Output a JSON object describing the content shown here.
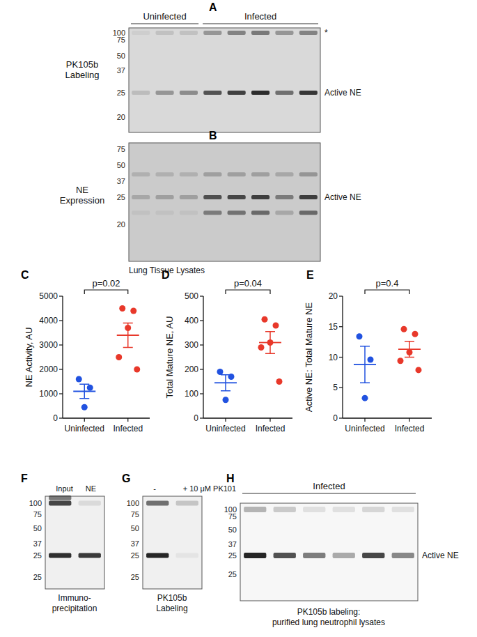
{
  "chart_data": [
    {
      "panel": "C",
      "type": "dot",
      "categories": [
        "Uninfected",
        "Infected"
      ],
      "values": [
        [
          1600,
          1250,
          450
        ],
        [
          4500,
          4400,
          3700,
          2500,
          2000
        ]
      ],
      "means": [
        1100,
        3400
      ],
      "errors": [
        290,
        500
      ],
      "colors": [
        "#2152e0",
        "#e8382a"
      ],
      "ylabel": "NE Activity, AU",
      "ylim": [
        0,
        5000
      ],
      "yticks": [
        0,
        1000,
        2000,
        3000,
        4000,
        5000
      ],
      "annotation": "p=0.02"
    },
    {
      "panel": "D",
      "type": "dot",
      "categories": [
        "Uninfected",
        "Infected"
      ],
      "values": [
        [
          190,
          170,
          75
        ],
        [
          405,
          380,
          310,
          290,
          150
        ]
      ],
      "means": [
        145,
        310
      ],
      "errors": [
        33,
        45
      ],
      "colors": [
        "#2152e0",
        "#e8382a"
      ],
      "ylabel": "Total Mature NE, AU",
      "ylim": [
        0,
        500
      ],
      "yticks": [
        0,
        100,
        200,
        300,
        400,
        500
      ],
      "annotation": "p=0.04"
    },
    {
      "panel": "E",
      "type": "dot",
      "categories": [
        "Uninfected",
        "Infected"
      ],
      "values": [
        [
          13.4,
          9.6,
          3.3
        ],
        [
          14.6,
          13.8,
          10.8,
          9.4,
          7.9
        ]
      ],
      "means": [
        8.8,
        11.3
      ],
      "errors": [
        3.0,
        1.3
      ],
      "colors": [
        "#2152e0",
        "#e8382a"
      ],
      "ylabel": "Active NE: Total Mature NE",
      "ylim": [
        0,
        20
      ],
      "yticks": [
        0,
        5,
        10,
        15,
        20
      ],
      "annotation": "p=0.4"
    }
  ],
  "gels": [
    {
      "panel": "A",
      "label": [
        "PK105b",
        "Labeling"
      ],
      "lane_groups": [
        {
          "label": "Uninfected",
          "lanes": 3
        },
        {
          "label": "Infected",
          "lanes": 5
        }
      ],
      "ladder": [
        100,
        75,
        50,
        37,
        25,
        20
      ],
      "bands": [
        {
          "mw": 100,
          "label": "*",
          "intensities": [
            0.05,
            0.12,
            0.12,
            0.35,
            0.45,
            0.5,
            0.35,
            0.45
          ]
        },
        {
          "mw": 25,
          "label": "Active NE",
          "intensities": [
            0.15,
            0.35,
            0.4,
            0.7,
            0.8,
            0.9,
            0.55,
            0.85
          ]
        }
      ]
    },
    {
      "panel": "B",
      "label": [
        "NE",
        "Expression"
      ],
      "ladder": [
        75,
        50,
        37,
        25,
        20
      ],
      "bands": [
        {
          "mw": 42,
          "intensities": [
            0.15,
            0.15,
            0.15,
            0.25,
            0.25,
            0.25,
            0.2,
            0.3
          ]
        },
        {
          "mw": 25,
          "label": "Active NE",
          "intensities": [
            0.2,
            0.25,
            0.25,
            0.7,
            0.75,
            0.8,
            0.45,
            0.8
          ]
        },
        {
          "mw": 22,
          "intensities": [
            0.05,
            0.05,
            0.05,
            0.45,
            0.5,
            0.55,
            0.2,
            0.55
          ]
        }
      ],
      "caption": [
        "Lung Tissue Lysates"
      ]
    },
    {
      "panel": "F",
      "lane_labels": [
        "Input",
        "NE"
      ],
      "ladder": [
        100,
        75,
        50,
        37,
        25,
        25
      ],
      "bands": [
        {
          "mw": 115,
          "intensities": [
            0.55,
            0
          ]
        },
        {
          "mw": 100,
          "intensities": [
            0.8,
            0.1
          ]
        },
        {
          "mw": 25,
          "intensities": [
            0.9,
            0.85
          ]
        }
      ],
      "caption": [
        "Immuno-",
        "precipitation"
      ]
    },
    {
      "panel": "G",
      "lane_labels": [
        "-",
        "+ 10 μM PK101"
      ],
      "ladder": [
        100,
        75,
        50,
        37,
        25,
        25
      ],
      "bands": [
        {
          "mw": 100,
          "intensities": [
            0.6,
            0.2
          ]
        },
        {
          "mw": 25,
          "intensities": [
            0.95,
            0.05
          ]
        }
      ],
      "caption": [
        "PK105b",
        "Labeling"
      ]
    },
    {
      "panel": "H",
      "lane_groups": [
        {
          "label": "Infected",
          "lanes": 6
        }
      ],
      "ladder": [
        100,
        75,
        50,
        37,
        25,
        25
      ],
      "bands": [
        {
          "mw": 100,
          "intensities": [
            0.3,
            0.2,
            0.1,
            0.1,
            0.15,
            0.1
          ]
        },
        {
          "mw": 25,
          "label": "Active NE",
          "intensities": [
            0.95,
            0.75,
            0.55,
            0.35,
            0.8,
            0.5
          ]
        }
      ],
      "caption": [
        "PK105b labeling:",
        "purified lung neutrophil lysates"
      ]
    }
  ]
}
